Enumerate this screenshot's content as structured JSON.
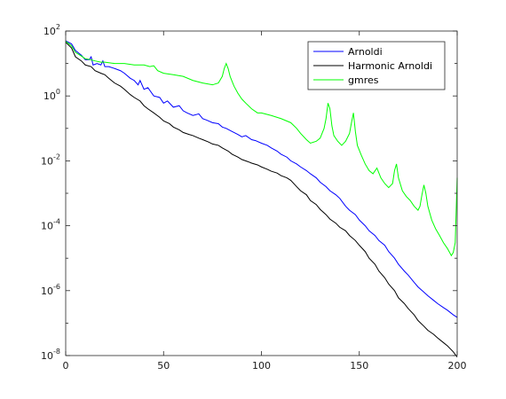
{
  "chart_data": {
    "type": "line",
    "title": "",
    "xlabel": "",
    "ylabel": "",
    "xlim": [
      0,
      200
    ],
    "ylim": [
      1e-08,
      100
    ],
    "yscale": "log",
    "grid": false,
    "legend_position": "top-right",
    "x_ticks": [
      0,
      50,
      100,
      150,
      200
    ],
    "x_tick_labels": [
      "0",
      "50",
      "100",
      "150",
      "200"
    ],
    "y_ticks": [
      {
        "value": 100,
        "base": "10",
        "exp": "2"
      },
      {
        "value": 1,
        "base": "10",
        "exp": "0"
      },
      {
        "value": 0.01,
        "base": "10",
        "exp": "-2"
      },
      {
        "value": 0.0001,
        "base": "10",
        "exp": "-4"
      },
      {
        "value": 1e-06,
        "base": "10",
        "exp": "-6"
      },
      {
        "value": 1e-08,
        "base": "10",
        "exp": "-8"
      }
    ],
    "series": [
      {
        "name": "Arnoldi",
        "color": "#0000ff",
        "points": [
          [
            0,
            50
          ],
          [
            3,
            40
          ],
          [
            5,
            25
          ],
          [
            8,
            18
          ],
          [
            10,
            13
          ],
          [
            12,
            13
          ],
          [
            13,
            16
          ],
          [
            14,
            9
          ],
          [
            16,
            10
          ],
          [
            18,
            9
          ],
          [
            19,
            12
          ],
          [
            20,
            8
          ],
          [
            22,
            8
          ],
          [
            25,
            7
          ],
          [
            28,
            6
          ],
          [
            30,
            5
          ],
          [
            33,
            3.5
          ],
          [
            35,
            3
          ],
          [
            37,
            2.2
          ],
          [
            38,
            3
          ],
          [
            40,
            1.6
          ],
          [
            42,
            1.8
          ],
          [
            45,
            1
          ],
          [
            48,
            0.9
          ],
          [
            50,
            0.6
          ],
          [
            52,
            0.7
          ],
          [
            55,
            0.45
          ],
          [
            58,
            0.5
          ],
          [
            60,
            0.35
          ],
          [
            62,
            0.3
          ],
          [
            65,
            0.25
          ],
          [
            68,
            0.28
          ],
          [
            70,
            0.2
          ],
          [
            72,
            0.18
          ],
          [
            75,
            0.15
          ],
          [
            78,
            0.14
          ],
          [
            80,
            0.11
          ],
          [
            82,
            0.1
          ],
          [
            85,
            0.08
          ],
          [
            88,
            0.065
          ],
          [
            90,
            0.055
          ],
          [
            92,
            0.06
          ],
          [
            95,
            0.045
          ],
          [
            97,
            0.042
          ],
          [
            100,
            0.035
          ],
          [
            103,
            0.03
          ],
          [
            105,
            0.025
          ],
          [
            108,
            0.02
          ],
          [
            110,
            0.016
          ],
          [
            113,
            0.013
          ],
          [
            115,
            0.01
          ],
          [
            118,
            0.008
          ],
          [
            120,
            0.0065
          ],
          [
            123,
            0.005
          ],
          [
            125,
            0.004
          ],
          [
            128,
            0.003
          ],
          [
            130,
            0.0022
          ],
          [
            133,
            0.0016
          ],
          [
            135,
            0.0012
          ],
          [
            138,
            0.0009
          ],
          [
            140,
            0.0007
          ],
          [
            143,
            0.0004
          ],
          [
            145,
            0.0003
          ],
          [
            148,
            0.00022
          ],
          [
            150,
            0.00015
          ],
          [
            153,
            0.0001
          ],
          [
            155,
            7e-05
          ],
          [
            158,
            5e-05
          ],
          [
            160,
            3.5e-05
          ],
          [
            163,
            2.5e-05
          ],
          [
            165,
            1.6e-05
          ],
          [
            168,
            1e-05
          ],
          [
            170,
            6.5e-06
          ],
          [
            173,
            4e-06
          ],
          [
            175,
            3e-06
          ],
          [
            178,
            1.8e-06
          ],
          [
            180,
            1.3e-06
          ],
          [
            183,
            9e-07
          ],
          [
            185,
            7e-07
          ],
          [
            188,
            5e-07
          ],
          [
            190,
            4e-07
          ],
          [
            193,
            3e-07
          ],
          [
            195,
            2.5e-07
          ],
          [
            198,
            1.8e-07
          ],
          [
            200,
            1.5e-07
          ]
        ]
      },
      {
        "name": "Harmonic Arnoldi",
        "color": "#000000",
        "points": [
          [
            0,
            45
          ],
          [
            3,
            30
          ],
          [
            5,
            16
          ],
          [
            8,
            12
          ],
          [
            10,
            9
          ],
          [
            13,
            8
          ],
          [
            15,
            6
          ],
          [
            18,
            5
          ],
          [
            20,
            4.5
          ],
          [
            22,
            3.5
          ],
          [
            25,
            2.5
          ],
          [
            28,
            2
          ],
          [
            30,
            1.6
          ],
          [
            33,
            1.1
          ],
          [
            35,
            0.9
          ],
          [
            38,
            0.7
          ],
          [
            40,
            0.5
          ],
          [
            42,
            0.4
          ],
          [
            45,
            0.3
          ],
          [
            48,
            0.22
          ],
          [
            50,
            0.17
          ],
          [
            53,
            0.14
          ],
          [
            55,
            0.11
          ],
          [
            58,
            0.09
          ],
          [
            60,
            0.075
          ],
          [
            63,
            0.065
          ],
          [
            65,
            0.06
          ],
          [
            68,
            0.05
          ],
          [
            70,
            0.045
          ],
          [
            73,
            0.038
          ],
          [
            75,
            0.033
          ],
          [
            78,
            0.03
          ],
          [
            80,
            0.025
          ],
          [
            83,
            0.02
          ],
          [
            85,
            0.016
          ],
          [
            88,
            0.013
          ],
          [
            90,
            0.011
          ],
          [
            93,
            0.0095
          ],
          [
            95,
            0.0085
          ],
          [
            98,
            0.0075
          ],
          [
            100,
            0.0065
          ],
          [
            103,
            0.0055
          ],
          [
            105,
            0.0048
          ],
          [
            108,
            0.0042
          ],
          [
            110,
            0.0035
          ],
          [
            113,
            0.003
          ],
          [
            115,
            0.0025
          ],
          [
            118,
            0.0016
          ],
          [
            120,
            0.0012
          ],
          [
            123,
            0.0009
          ],
          [
            125,
            0.0006
          ],
          [
            128,
            0.00045
          ],
          [
            130,
            0.00032
          ],
          [
            133,
            0.00022
          ],
          [
            135,
            0.00016
          ],
          [
            138,
            0.00012
          ],
          [
            140,
            9e-05
          ],
          [
            143,
            7e-05
          ],
          [
            145,
            5e-05
          ],
          [
            148,
            3.5e-05
          ],
          [
            150,
            2.5e-05
          ],
          [
            153,
            1.6e-05
          ],
          [
            155,
            1e-05
          ],
          [
            158,
            6.5e-06
          ],
          [
            160,
            4e-06
          ],
          [
            163,
            2.5e-06
          ],
          [
            165,
            1.6e-06
          ],
          [
            168,
            1e-06
          ],
          [
            170,
            6e-07
          ],
          [
            173,
            4e-07
          ],
          [
            175,
            2.8e-07
          ],
          [
            178,
            1.8e-07
          ],
          [
            180,
            1.2e-07
          ],
          [
            183,
            8e-08
          ],
          [
            185,
            6e-08
          ],
          [
            188,
            4.5e-08
          ],
          [
            190,
            3.5e-08
          ],
          [
            193,
            2.5e-08
          ],
          [
            195,
            2e-08
          ],
          [
            198,
            1.3e-08
          ],
          [
            200,
            9e-09
          ]
        ]
      },
      {
        "name": "gmres",
        "color": "#00ff00",
        "points": [
          [
            0,
            48
          ],
          [
            3,
            35
          ],
          [
            5,
            22
          ],
          [
            8,
            17
          ],
          [
            10,
            14
          ],
          [
            13,
            13
          ],
          [
            15,
            12
          ],
          [
            18,
            11
          ],
          [
            20,
            11
          ],
          [
            25,
            10
          ],
          [
            30,
            10
          ],
          [
            35,
            9
          ],
          [
            40,
            9
          ],
          [
            43,
            8
          ],
          [
            45,
            8.5
          ],
          [
            47,
            6
          ],
          [
            50,
            5
          ],
          [
            55,
            4.5
          ],
          [
            60,
            4
          ],
          [
            65,
            3
          ],
          [
            70,
            2.5
          ],
          [
            75,
            2.2
          ],
          [
            78,
            2.5
          ],
          [
            80,
            4
          ],
          [
            81,
            7
          ],
          [
            82,
            10
          ],
          [
            83,
            7
          ],
          [
            84,
            4
          ],
          [
            86,
            2
          ],
          [
            88,
            1.2
          ],
          [
            90,
            0.8
          ],
          [
            92,
            0.6
          ],
          [
            95,
            0.4
          ],
          [
            98,
            0.3
          ],
          [
            100,
            0.3
          ],
          [
            105,
            0.25
          ],
          [
            110,
            0.2
          ],
          [
            115,
            0.15
          ],
          [
            118,
            0.1
          ],
          [
            120,
            0.07
          ],
          [
            123,
            0.045
          ],
          [
            125,
            0.035
          ],
          [
            128,
            0.04
          ],
          [
            130,
            0.05
          ],
          [
            132,
            0.1
          ],
          [
            133,
            0.2
          ],
          [
            134,
            0.6
          ],
          [
            135,
            0.4
          ],
          [
            136,
            0.12
          ],
          [
            137,
            0.06
          ],
          [
            139,
            0.04
          ],
          [
            141,
            0.03
          ],
          [
            143,
            0.04
          ],
          [
            145,
            0.07
          ],
          [
            146,
            0.15
          ],
          [
            147,
            0.3
          ],
          [
            148,
            0.08
          ],
          [
            149,
            0.03
          ],
          [
            151,
            0.015
          ],
          [
            153,
            0.008
          ],
          [
            155,
            0.005
          ],
          [
            157,
            0.004
          ],
          [
            159,
            0.006
          ],
          [
            161,
            0.003
          ],
          [
            163,
            0.002
          ],
          [
            165,
            0.0015
          ],
          [
            167,
            0.002
          ],
          [
            168,
            0.005
          ],
          [
            169,
            0.008
          ],
          [
            170,
            0.003
          ],
          [
            172,
            0.0012
          ],
          [
            174,
            0.0008
          ],
          [
            176,
            0.0006
          ],
          [
            178,
            0.0004
          ],
          [
            180,
            0.0003
          ],
          [
            181,
            0.0004
          ],
          [
            182,
            0.0009
          ],
          [
            183,
            0.0018
          ],
          [
            184,
            0.001
          ],
          [
            185,
            0.0004
          ],
          [
            187,
            0.00015
          ],
          [
            189,
            8e-05
          ],
          [
            191,
            5e-05
          ],
          [
            193,
            3e-05
          ],
          [
            195,
            2e-05
          ],
          [
            197,
            1.2e-05
          ],
          [
            198,
            1.5e-05
          ],
          [
            199,
            3e-05
          ],
          [
            200,
            0.003
          ]
        ]
      }
    ]
  }
}
